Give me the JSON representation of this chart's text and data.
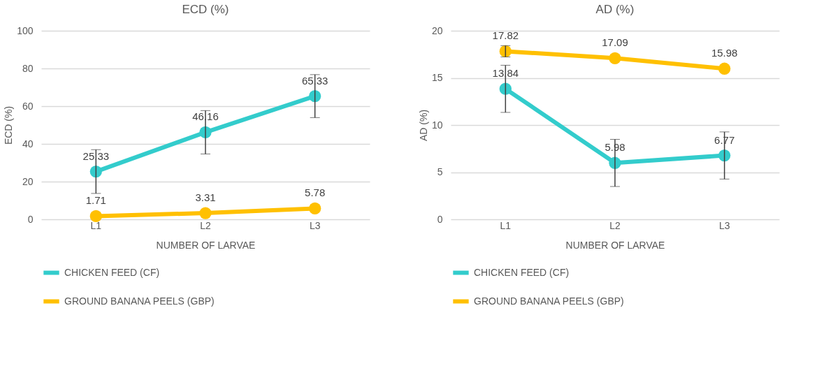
{
  "chart_data": [
    {
      "type": "line",
      "title": "ECD (%)",
      "xlabel": "NUMBER OF LARVAE",
      "ylabel": "ECD (%)",
      "categories": [
        "L1",
        "L2",
        "L3"
      ],
      "ylim": [
        0,
        100
      ],
      "yticks": [
        0,
        20,
        40,
        60,
        80,
        100
      ],
      "grid": "y",
      "legend": "bottom",
      "marker": "circle",
      "data_labels": true,
      "series": [
        {
          "name": "CHICKEN FEED (CF)",
          "color": "#33cccc",
          "values": [
            25.33,
            46.16,
            65.33
          ],
          "errors": [
            11.6,
            11.5,
            11.4
          ]
        },
        {
          "name": "GROUND BANANA PEELS (GBP)",
          "color": "#ffc000",
          "values": [
            1.71,
            3.31,
            5.78
          ]
        }
      ]
    },
    {
      "type": "line",
      "title": "AD (%)",
      "xlabel": "NUMBER OF LARVAE",
      "ylabel": "AD (%)",
      "categories": [
        "L1",
        "L2",
        "L3"
      ],
      "ylim": [
        0,
        20
      ],
      "yticks": [
        0,
        5,
        10,
        15,
        20
      ],
      "grid": "y",
      "legend": "bottom",
      "marker": "circle",
      "data_labels": true,
      "series": [
        {
          "name": "CHICKEN FEED (CF)",
          "color": "#33cccc",
          "values": [
            13.84,
            5.98,
            6.77
          ],
          "errors": [
            2.5,
            2.5,
            2.5
          ]
        },
        {
          "name": "GROUND BANANA PEELS (GBP)",
          "color": "#ffc000",
          "values": [
            17.82,
            17.09,
            15.98
          ],
          "errors": [
            0.6,
            null,
            null
          ]
        }
      ]
    }
  ]
}
